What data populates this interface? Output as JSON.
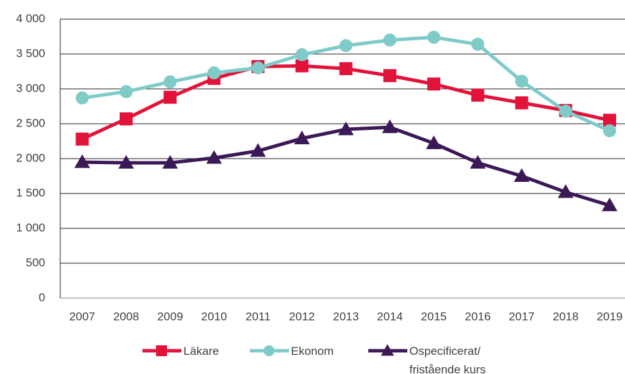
{
  "chart_data": {
    "type": "line",
    "categories": [
      "2007",
      "2008",
      "2009",
      "2010",
      "2011",
      "2012",
      "2013",
      "2014",
      "2015",
      "2016",
      "2017",
      "2018",
      "2019"
    ],
    "series": [
      {
        "name": "Läkare",
        "color": "#e2133b",
        "marker": "square",
        "values": [
          2280,
          2570,
          2880,
          3150,
          3320,
          3330,
          3290,
          3190,
          3070,
          2910,
          2800,
          2690,
          2550
        ]
      },
      {
        "name": "Ekonom",
        "color": "#7ecbc8",
        "marker": "circle",
        "values": [
          2870,
          2960,
          3100,
          3230,
          3300,
          3490,
          3620,
          3700,
          3740,
          3640,
          3110,
          2680,
          2400
        ]
      },
      {
        "name": "Ospecificerat/ fristående kurs",
        "color": "#3b1856",
        "marker": "triangle",
        "values": [
          1950,
          1940,
          1940,
          2010,
          2110,
          2290,
          2420,
          2450,
          2220,
          1940,
          1750,
          1520,
          1330
        ]
      }
    ],
    "ylim": [
      0,
      4000
    ],
    "yticks": [
      0,
      500,
      {
        "value": 1000,
        "label": "1 000"
      },
      {
        "value": 1500,
        "label": "1 500"
      },
      {
        "value": 2000,
        "label": "2 000"
      },
      {
        "value": 2500,
        "label": "2 500"
      },
      {
        "value": 3000,
        "label": "3 000"
      },
      {
        "value": 3500,
        "label": "3 500"
      },
      {
        "value": 4000,
        "label": "4 000"
      }
    ],
    "grid": true,
    "legend": "bottom"
  }
}
